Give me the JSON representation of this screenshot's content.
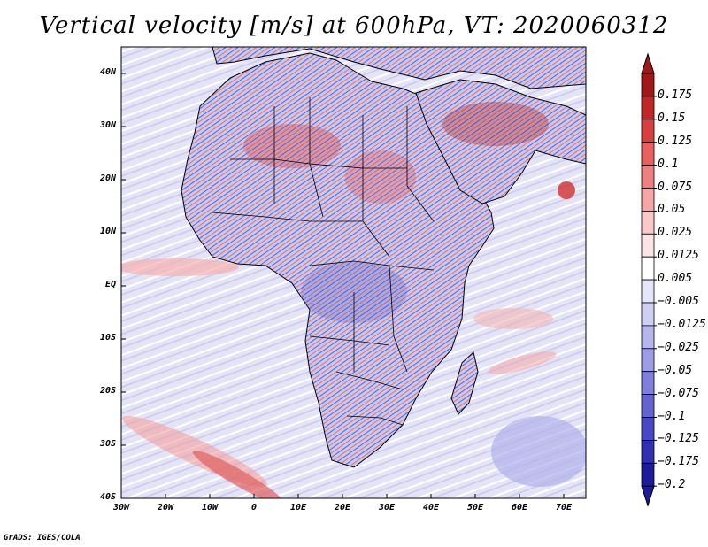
{
  "title": "Vertical velocity [m/s] at 600hPa, VT: 2020060312",
  "footer": "GrADS: IGES/COLA",
  "axes": {
    "lat_labels": [
      "40N",
      "30N",
      "20N",
      "10N",
      "EQ",
      "10S",
      "20S",
      "30S",
      "40S"
    ],
    "lat_values": [
      40,
      30,
      20,
      10,
      0,
      -10,
      -20,
      -30,
      -40
    ],
    "lon_labels": [
      "30W",
      "20W",
      "10W",
      "0",
      "10E",
      "20E",
      "30E",
      "40E",
      "50E",
      "60E",
      "70E"
    ],
    "lon_values": [
      -30,
      -20,
      -10,
      0,
      10,
      20,
      30,
      40,
      50,
      60,
      70
    ],
    "lon_range": [
      -30,
      75
    ],
    "lat_range": [
      -40,
      45
    ]
  },
  "colorbar": {
    "labels": [
      "0.175",
      "0.15",
      "0.125",
      "0.1",
      "0.075",
      "0.05",
      "0.025",
      "0.0125",
      "0.005",
      "-0.005",
      "-0.0125",
      "-0.025",
      "-0.05",
      "-0.075",
      "-0.1",
      "-0.125",
      "-0.175",
      "-0.2"
    ],
    "colors": [
      "#a01818",
      "#c02828",
      "#d84040",
      "#e86060",
      "#f08080",
      "#f6a6a6",
      "#fbc8c8",
      "#fde4e4",
      "#ffffff",
      "#e6e6fa",
      "#cfcff4",
      "#b6b6ee",
      "#9d9de6",
      "#8080dc",
      "#6464d0",
      "#4848c4",
      "#3030b0",
      "#1c1c98"
    ]
  },
  "colors": {
    "ocean_base": "#e4e4f6",
    "land_base": "#cccdf0",
    "border": "#000000"
  }
}
